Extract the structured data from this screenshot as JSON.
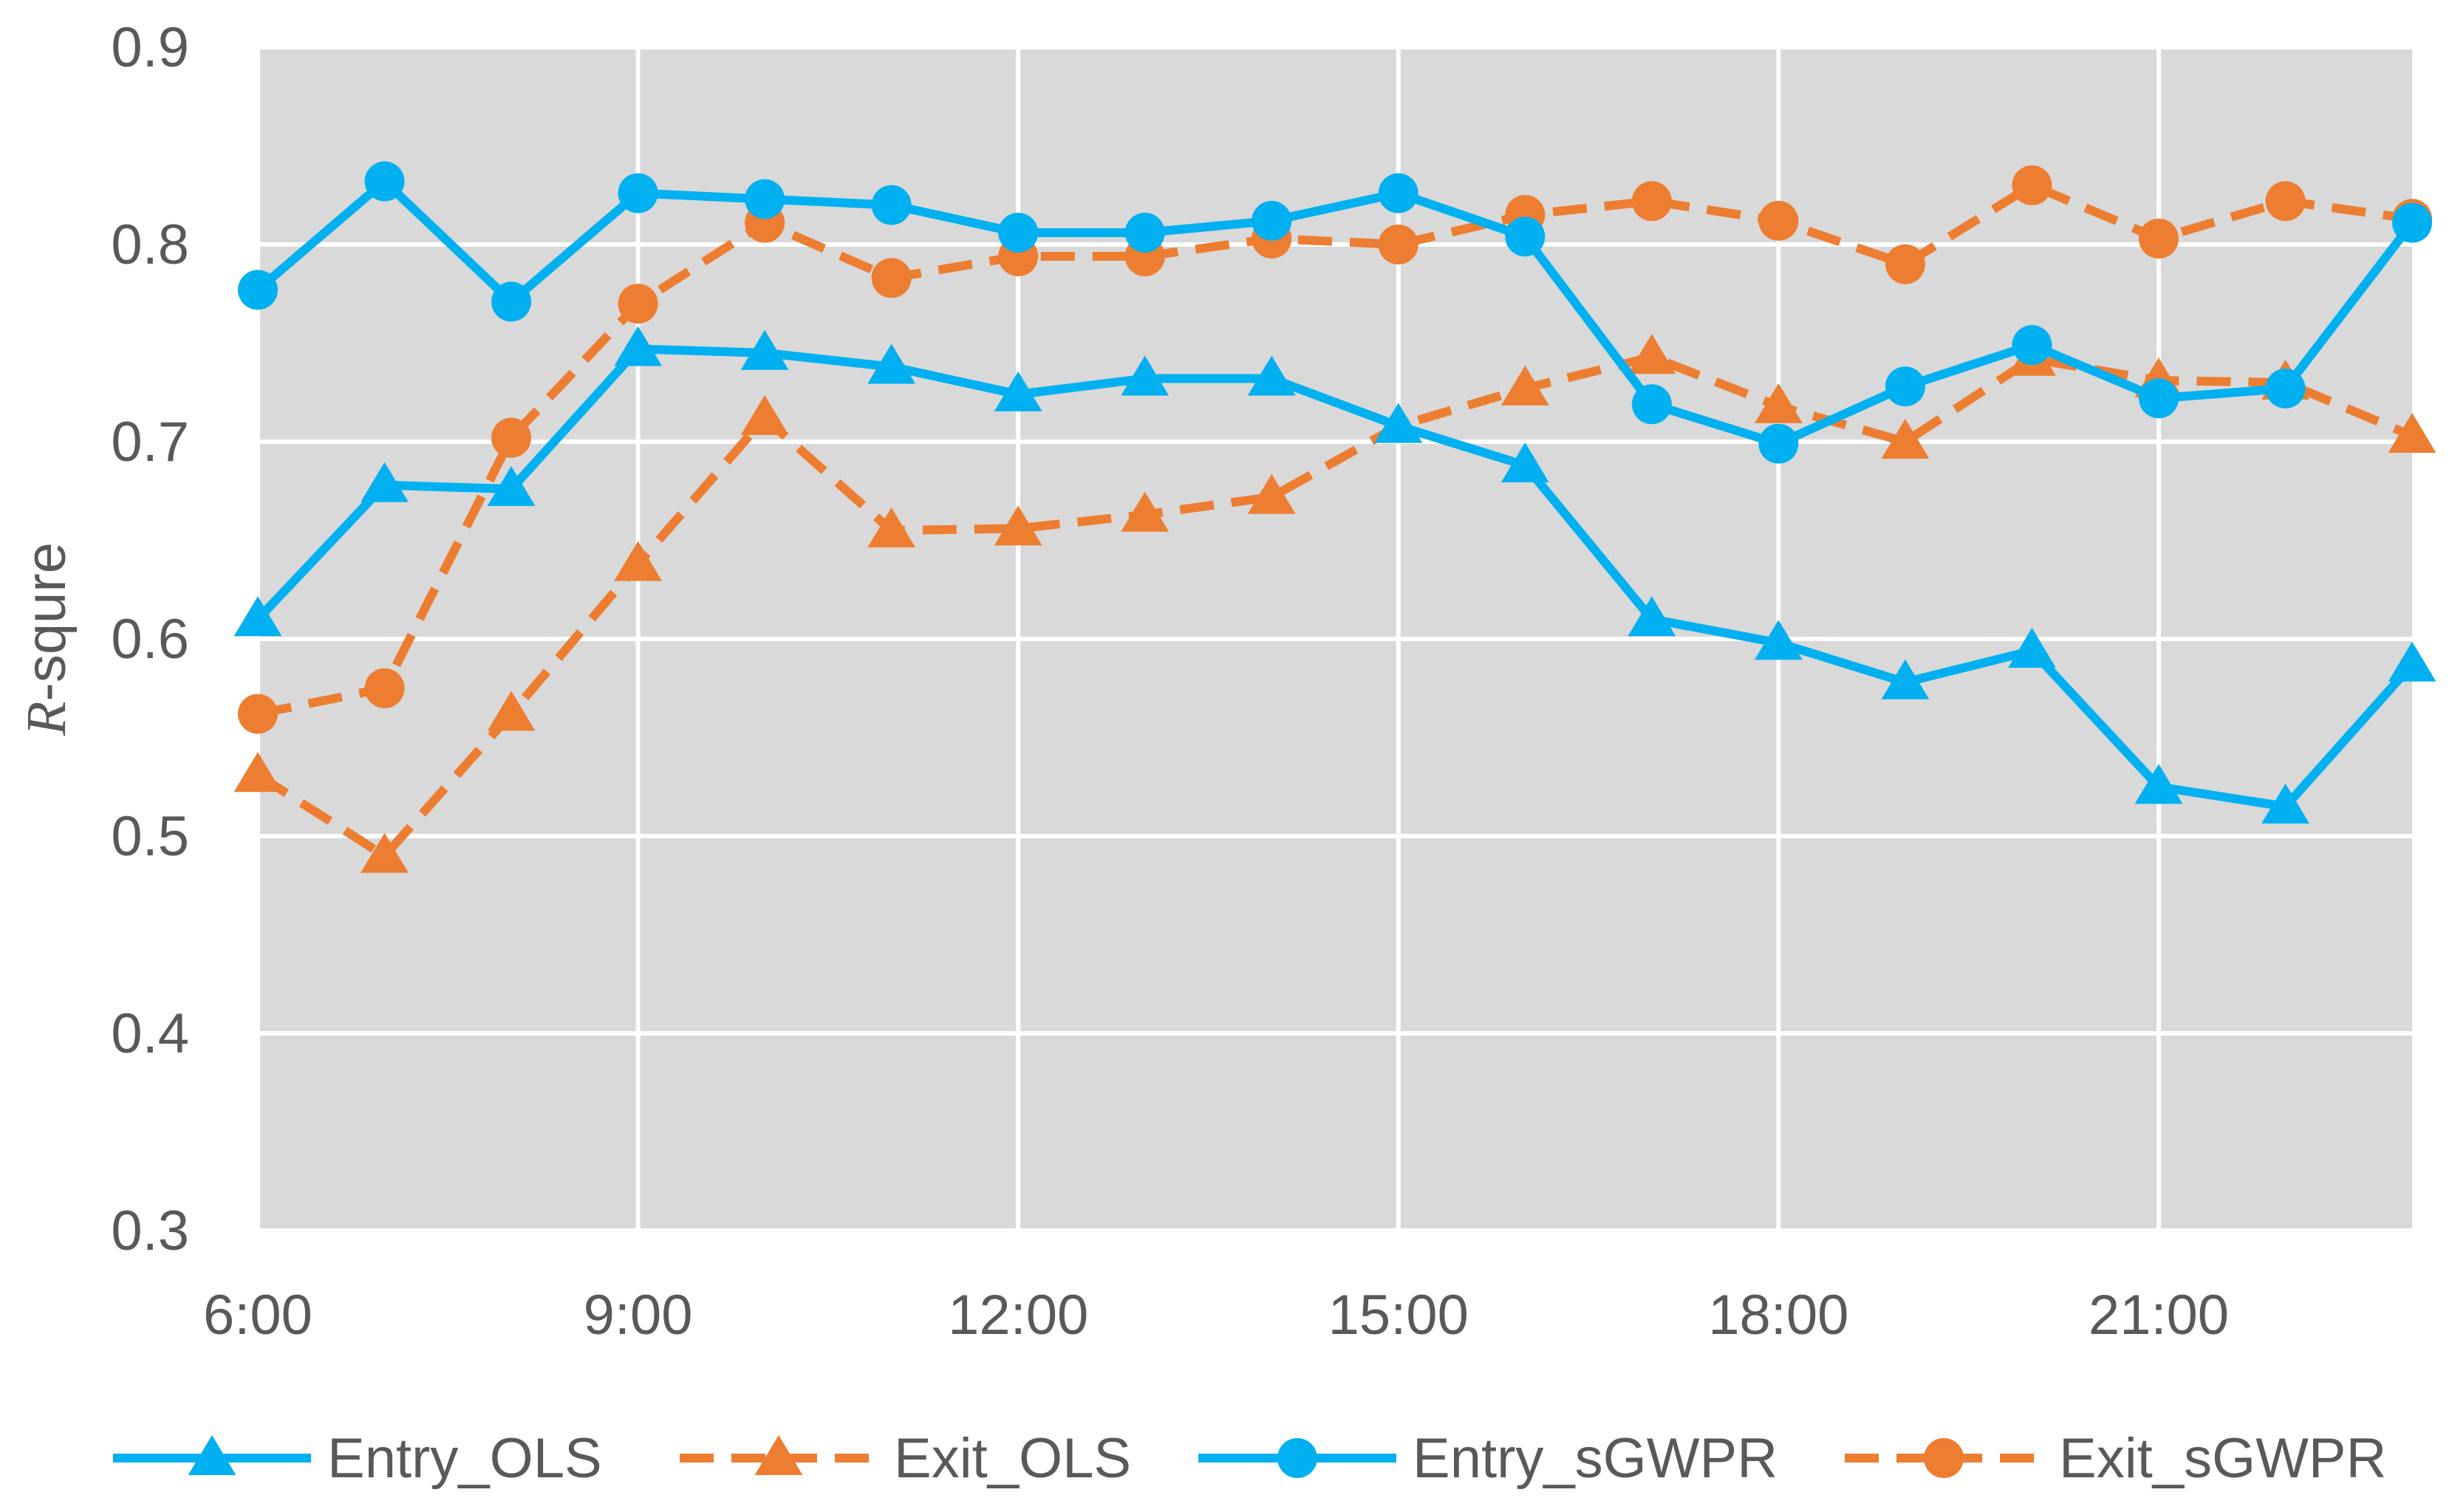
{
  "chart_data": {
    "type": "line",
    "ylabel": "R-squre",
    "ylabel_italic_part": "R",
    "ylabel_rest": "-squre",
    "ylim": [
      0.3,
      0.9
    ],
    "yticks": [
      "0.3",
      "0.4",
      "0.5",
      "0.6",
      "0.7",
      "0.8",
      "0.9"
    ],
    "x_hours": [
      6,
      7,
      8,
      9,
      10,
      11,
      12,
      13,
      14,
      15,
      16,
      17,
      18,
      19,
      20,
      21,
      22,
      23
    ],
    "xlim": [
      6,
      23
    ],
    "xticks": [
      {
        "label": "6:00",
        "hour": 6
      },
      {
        "label": "9:00",
        "hour": 9
      },
      {
        "label": "12:00",
        "hour": 12
      },
      {
        "label": "15:00",
        "hour": 15
      },
      {
        "label": "18:00",
        "hour": 18
      },
      {
        "label": "21:00",
        "hour": 21
      }
    ],
    "grid": true,
    "plot_background": "#d9d9d9",
    "legend_position": "bottom",
    "series": [
      {
        "name": "Entry_OLS",
        "color": "#00b0f0",
        "dash": false,
        "marker": "triangle",
        "values": [
          0.61,
          0.678,
          0.676,
          0.747,
          0.745,
          0.738,
          0.724,
          0.732,
          0.732,
          0.708,
          0.688,
          0.61,
          0.598,
          0.578,
          0.594,
          0.525,
          0.515,
          0.587
        ]
      },
      {
        "name": "Exit_OLS",
        "color": "#ed7d31",
        "dash": true,
        "marker": "triangle",
        "values": [
          0.531,
          0.49,
          0.562,
          0.638,
          0.712,
          0.655,
          0.656,
          0.663,
          0.672,
          0.708,
          0.727,
          0.743,
          0.718,
          0.7,
          0.742,
          0.731,
          0.73,
          0.703
        ]
      },
      {
        "name": "Entry_sGWPR",
        "color": "#00b0f0",
        "dash": false,
        "marker": "circle",
        "values": [
          0.777,
          0.832,
          0.771,
          0.826,
          0.823,
          0.82,
          0.806,
          0.806,
          0.812,
          0.826,
          0.804,
          0.719,
          0.699,
          0.728,
          0.749,
          0.722,
          0.727,
          0.811
        ]
      },
      {
        "name": "Exit_sGWPR",
        "color": "#ed7d31",
        "dash": true,
        "marker": "circle",
        "values": [
          0.562,
          0.575,
          0.702,
          0.77,
          0.811,
          0.783,
          0.794,
          0.794,
          0.803,
          0.8,
          0.815,
          0.822,
          0.812,
          0.79,
          0.83,
          0.803,
          0.822,
          0.813
        ]
      }
    ]
  }
}
